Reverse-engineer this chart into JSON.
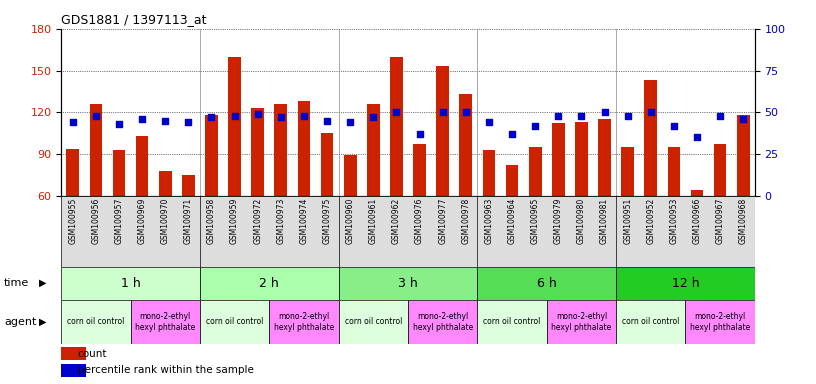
{
  "title": "GDS1881 / 1397113_at",
  "samples": [
    "GSM100955",
    "GSM100956",
    "GSM100957",
    "GSM100969",
    "GSM100970",
    "GSM100971",
    "GSM100958",
    "GSM100959",
    "GSM100972",
    "GSM100973",
    "GSM100974",
    "GSM100975",
    "GSM100960",
    "GSM100961",
    "GSM100962",
    "GSM100976",
    "GSM100977",
    "GSM100978",
    "GSM100963",
    "GSM100964",
    "GSM100965",
    "GSM100979",
    "GSM100980",
    "GSM100981",
    "GSM100951",
    "GSM100952",
    "GSM100953",
    "GSM100966",
    "GSM100967",
    "GSM100968"
  ],
  "counts": [
    94,
    126,
    93,
    103,
    78,
    75,
    118,
    160,
    123,
    126,
    128,
    105,
    89,
    126,
    160,
    97,
    153,
    133,
    93,
    82,
    95,
    112,
    113,
    115,
    95,
    143,
    95,
    64,
    97,
    118
  ],
  "percentiles": [
    44,
    48,
    43,
    46,
    45,
    44,
    47,
    48,
    49,
    47,
    48,
    45,
    44,
    47,
    50,
    37,
    50,
    50,
    44,
    37,
    42,
    48,
    48,
    50,
    48,
    50,
    42,
    35,
    48,
    46
  ],
  "ylim_left": [
    60,
    180
  ],
  "ylim_right": [
    0,
    100
  ],
  "yticks_left": [
    60,
    90,
    120,
    150,
    180
  ],
  "yticks_right": [
    0,
    25,
    50,
    75,
    100
  ],
  "bar_color": "#cc2200",
  "dot_color": "#0000cc",
  "time_groups": [
    {
      "label": "1 h",
      "start": 0,
      "end": 6
    },
    {
      "label": "2 h",
      "start": 6,
      "end": 12
    },
    {
      "label": "3 h",
      "start": 12,
      "end": 18
    },
    {
      "label": "6 h",
      "start": 18,
      "end": 24
    },
    {
      "label": "12 h",
      "start": 24,
      "end": 30
    }
  ],
  "agent_groups": [
    {
      "label": "corn oil control",
      "start": 0,
      "end": 3,
      "color": "#ddffdd"
    },
    {
      "label": "mono-2-ethyl\nhexyl phthalate",
      "start": 3,
      "end": 6,
      "color": "#ff88ff"
    },
    {
      "label": "corn oil control",
      "start": 6,
      "end": 9,
      "color": "#ddffdd"
    },
    {
      "label": "mono-2-ethyl\nhexyl phthalate",
      "start": 9,
      "end": 12,
      "color": "#ff88ff"
    },
    {
      "label": "corn oil control",
      "start": 12,
      "end": 15,
      "color": "#ddffdd"
    },
    {
      "label": "mono-2-ethyl\nhexyl phthalate",
      "start": 15,
      "end": 18,
      "color": "#ff88ff"
    },
    {
      "label": "corn oil control",
      "start": 18,
      "end": 21,
      "color": "#ddffdd"
    },
    {
      "label": "mono-2-ethyl\nhexyl phthalate",
      "start": 21,
      "end": 24,
      "color": "#ff88ff"
    },
    {
      "label": "corn oil control",
      "start": 24,
      "end": 27,
      "color": "#ddffdd"
    },
    {
      "label": "mono-2-ethyl\nhexyl phthalate",
      "start": 27,
      "end": 30,
      "color": "#ff88ff"
    }
  ],
  "time_colors": [
    "#ccffcc",
    "#aaffaa",
    "#88ee88",
    "#55dd55",
    "#22cc22"
  ],
  "bg_color": "#ffffff",
  "tick_label_color_left": "#cc2200",
  "tick_label_color_right": "#0000cc",
  "xticklabel_bg": "#dddddd"
}
